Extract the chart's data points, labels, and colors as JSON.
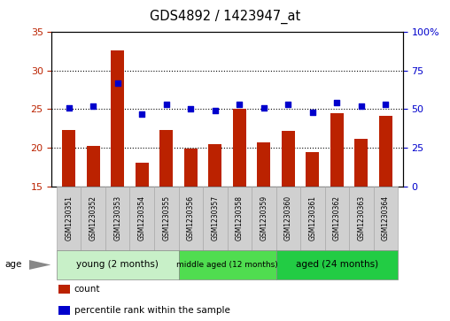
{
  "title": "GDS4892 / 1423947_at",
  "samples": [
    "GSM1230351",
    "GSM1230352",
    "GSM1230353",
    "GSM1230354",
    "GSM1230355",
    "GSM1230356",
    "GSM1230357",
    "GSM1230358",
    "GSM1230359",
    "GSM1230360",
    "GSM1230361",
    "GSM1230362",
    "GSM1230363",
    "GSM1230364"
  ],
  "counts": [
    22.3,
    20.2,
    32.6,
    18.1,
    22.3,
    19.9,
    20.5,
    25.0,
    20.7,
    22.2,
    19.4,
    24.5,
    21.2,
    24.1
  ],
  "percentiles": [
    51,
    52,
    67,
    47,
    53,
    50,
    49,
    53,
    51,
    53,
    48,
    54,
    52,
    53
  ],
  "ylim_left": [
    15,
    35
  ],
  "ylim_right": [
    0,
    100
  ],
  "yticks_left": [
    15,
    20,
    25,
    30,
    35
  ],
  "yticks_right": [
    0,
    25,
    50,
    75,
    100
  ],
  "bar_color": "#bb2200",
  "dot_color": "#0000cc",
  "groups": [
    {
      "label": "young (2 months)",
      "start": 0,
      "end": 5
    },
    {
      "label": "middle aged (12 months)",
      "start": 5,
      "end": 9
    },
    {
      "label": "aged (24 months)",
      "start": 9,
      "end": 14
    }
  ],
  "group_colors": [
    "#c8f0c8",
    "#50dd50",
    "#22cc44"
  ],
  "legend_count_label": "count",
  "legend_pct_label": "percentile rank within the sample",
  "age_label": "age",
  "bar_width": 0.55,
  "sample_box_color": "#d0d0d0",
  "sample_box_edge": "#aaaaaa"
}
